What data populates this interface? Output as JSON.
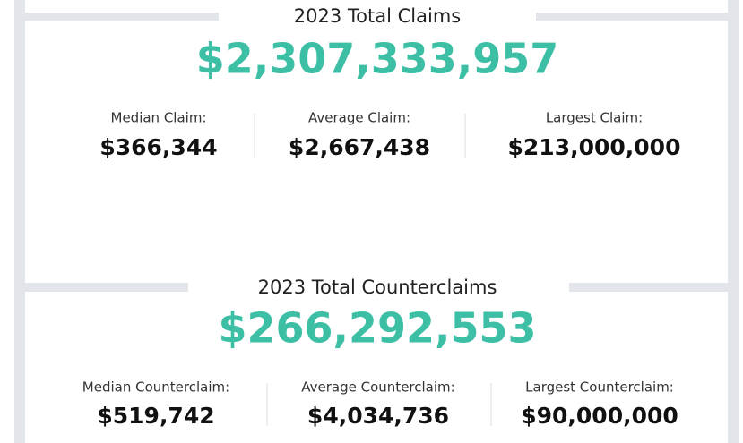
{
  "sections": [
    {
      "title": "2023 Total Claims",
      "total": "$2,307,333,957",
      "stats": [
        {
          "label": "Median Claim:",
          "value": "$366,344"
        },
        {
          "label": "Average Claim:",
          "value": "$2,667,438"
        },
        {
          "label": "Largest Claim:",
          "value": "$213,000,000"
        }
      ]
    },
    {
      "title": "2023 Total Counterclaims",
      "total": "$266,292,553",
      "stats": [
        {
          "label": "Median Counterclaim:",
          "value": "$519,742"
        },
        {
          "label": "Average Counterclaim:",
          "value": "$4,034,736"
        },
        {
          "label": "Largest Counterclaim:",
          "value": "$90,000,000"
        }
      ]
    }
  ]
}
